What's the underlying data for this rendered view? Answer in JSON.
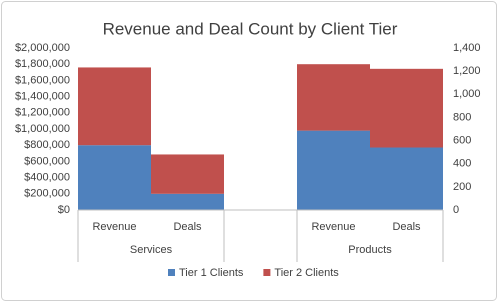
{
  "chart_data": {
    "type": "bar",
    "stacked": true,
    "title": "Revenue and Deal Count by Client Tier",
    "groups": [
      "Services",
      "Products"
    ],
    "categories": [
      "Revenue",
      "Deals",
      "Revenue",
      "Deals"
    ],
    "category_groups": [
      0,
      0,
      1,
      1
    ],
    "category_axes": [
      "y",
      "y2",
      "y",
      "y2"
    ],
    "series": [
      {
        "name": "Tier 1 Clients",
        "color": "#4f81bd",
        "values": [
          800000,
          140,
          980000,
          540
        ]
      },
      {
        "name": "Tier 2 Clients",
        "color": "#c0504d",
        "values": [
          960000,
          340,
          820000,
          680
        ]
      }
    ],
    "ylim": [
      0,
      2000000
    ],
    "yticks": [
      {
        "value": 0,
        "label": "$0"
      },
      {
        "value": 200000,
        "label": "$200,000"
      },
      {
        "value": 400000,
        "label": "$400,000"
      },
      {
        "value": 600000,
        "label": "$600,000"
      },
      {
        "value": 800000,
        "label": "$800,000"
      },
      {
        "value": 1000000,
        "label": "$1,000,000"
      },
      {
        "value": 1200000,
        "label": "$1,200,000"
      },
      {
        "value": 1400000,
        "label": "$1,400,000"
      },
      {
        "value": 1600000,
        "label": "$1,600,000"
      },
      {
        "value": 1800000,
        "label": "$1,800,000"
      },
      {
        "value": 2000000,
        "label": "$2,000,000"
      }
    ],
    "y2lim": [
      0,
      1400
    ],
    "y2ticks": [
      0,
      200,
      400,
      600,
      800,
      {
        "value": 1000,
        "label": "1,000"
      },
      {
        "value": 1200,
        "label": "1,200"
      },
      {
        "value": 1400,
        "label": "1,400"
      }
    ],
    "legend": "bottom",
    "grid": false
  }
}
